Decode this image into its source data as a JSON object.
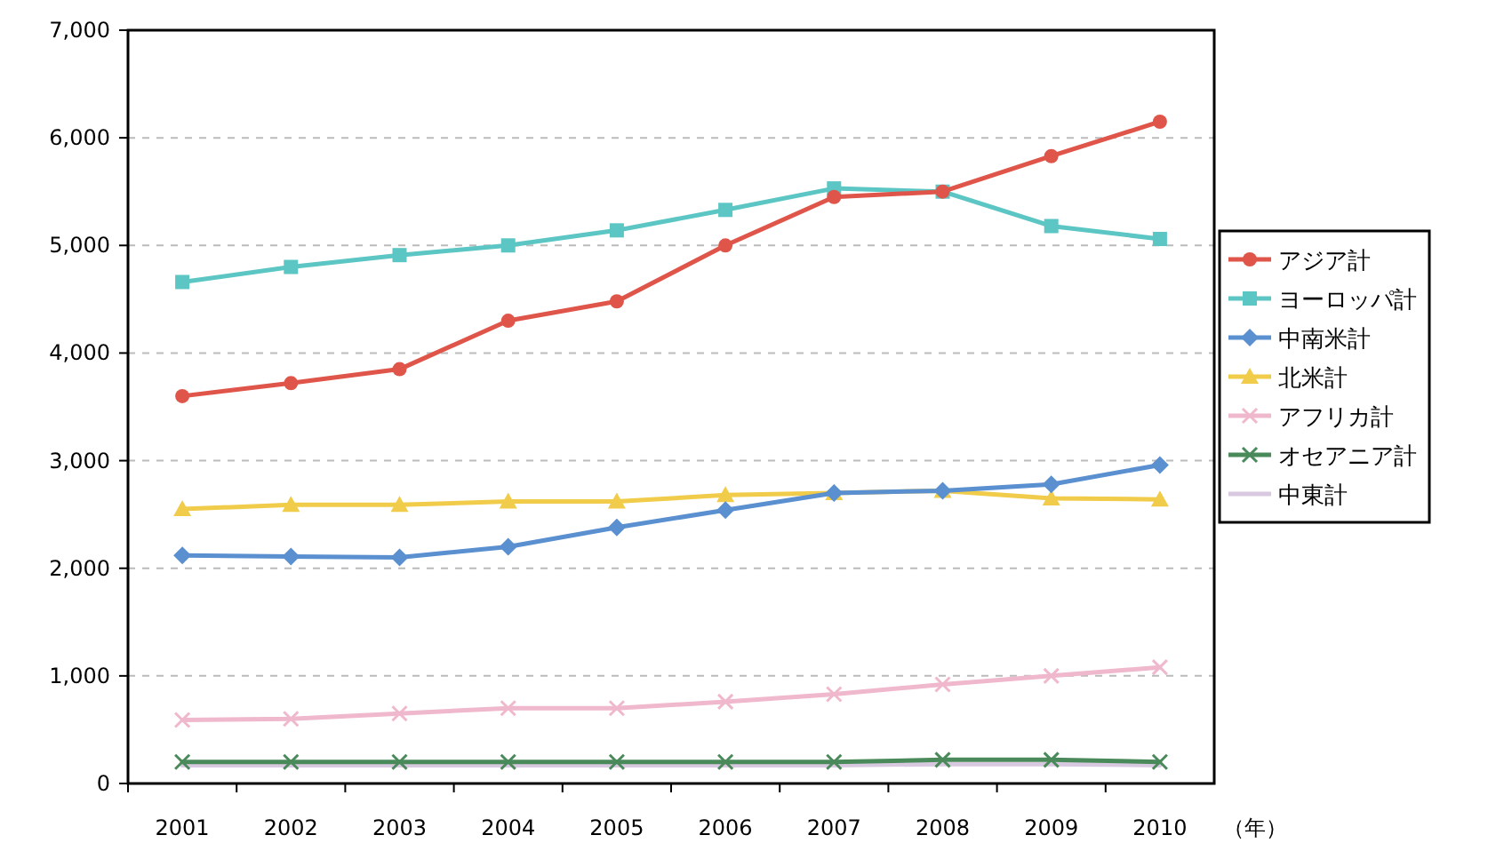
{
  "chart_data": {
    "type": "line",
    "categories": [
      "2001",
      "2002",
      "2003",
      "2004",
      "2005",
      "2006",
      "2007",
      "2008",
      "2009",
      "2010"
    ],
    "ylim": [
      0,
      7000
    ],
    "yticks": [
      0,
      {
        "value": 1000,
        "label": "1,000"
      },
      {
        "value": 2000,
        "label": "2,000"
      },
      {
        "value": 3000,
        "label": "3,000"
      },
      {
        "value": 4000,
        "label": "4,000"
      },
      {
        "value": 5000,
        "label": "5,000"
      },
      {
        "value": 6000,
        "label": "6,000"
      },
      {
        "value": 7000,
        "label": "7,000"
      }
    ],
    "grid": "y",
    "legend": "right",
    "annotations": [
      "（年）"
    ],
    "series": [
      {
        "name": "アジア計",
        "color": "#e0554a",
        "marker": "circle",
        "values": [
          3600,
          3720,
          3850,
          4300,
          4480,
          5000,
          5450,
          5500,
          5830,
          6150
        ]
      },
      {
        "name": "ヨーロッパ計",
        "color": "#5cc6c4",
        "marker": "square",
        "values": [
          4660,
          4800,
          4910,
          5000,
          5140,
          5330,
          5530,
          5500,
          5180,
          5060
        ]
      },
      {
        "name": "中南米計",
        "color": "#5a8fd0",
        "marker": "diamond",
        "values": [
          2120,
          2110,
          2100,
          2200,
          2380,
          2540,
          2700,
          2720,
          2780,
          2960
        ]
      },
      {
        "name": "北米計",
        "color": "#f0cc4a",
        "marker": "triangle",
        "values": [
          2550,
          2590,
          2590,
          2620,
          2620,
          2680,
          2700,
          2720,
          2650,
          2640
        ]
      },
      {
        "name": "アフリカ計",
        "color": "#f0b8cc",
        "marker": "cross",
        "values": [
          590,
          600,
          650,
          700,
          700,
          760,
          830,
          920,
          1000,
          1080
        ]
      },
      {
        "name": "オセアニア計",
        "color": "#4a8a5a",
        "marker": "cross",
        "values": [
          200,
          200,
          200,
          200,
          200,
          200,
          200,
          220,
          220,
          200
        ]
      },
      {
        "name": "中東計",
        "color": "#d8c8e0",
        "marker": "none",
        "values": [
          170,
          170,
          170,
          170,
          170,
          170,
          170,
          180,
          180,
          170
        ]
      }
    ]
  }
}
